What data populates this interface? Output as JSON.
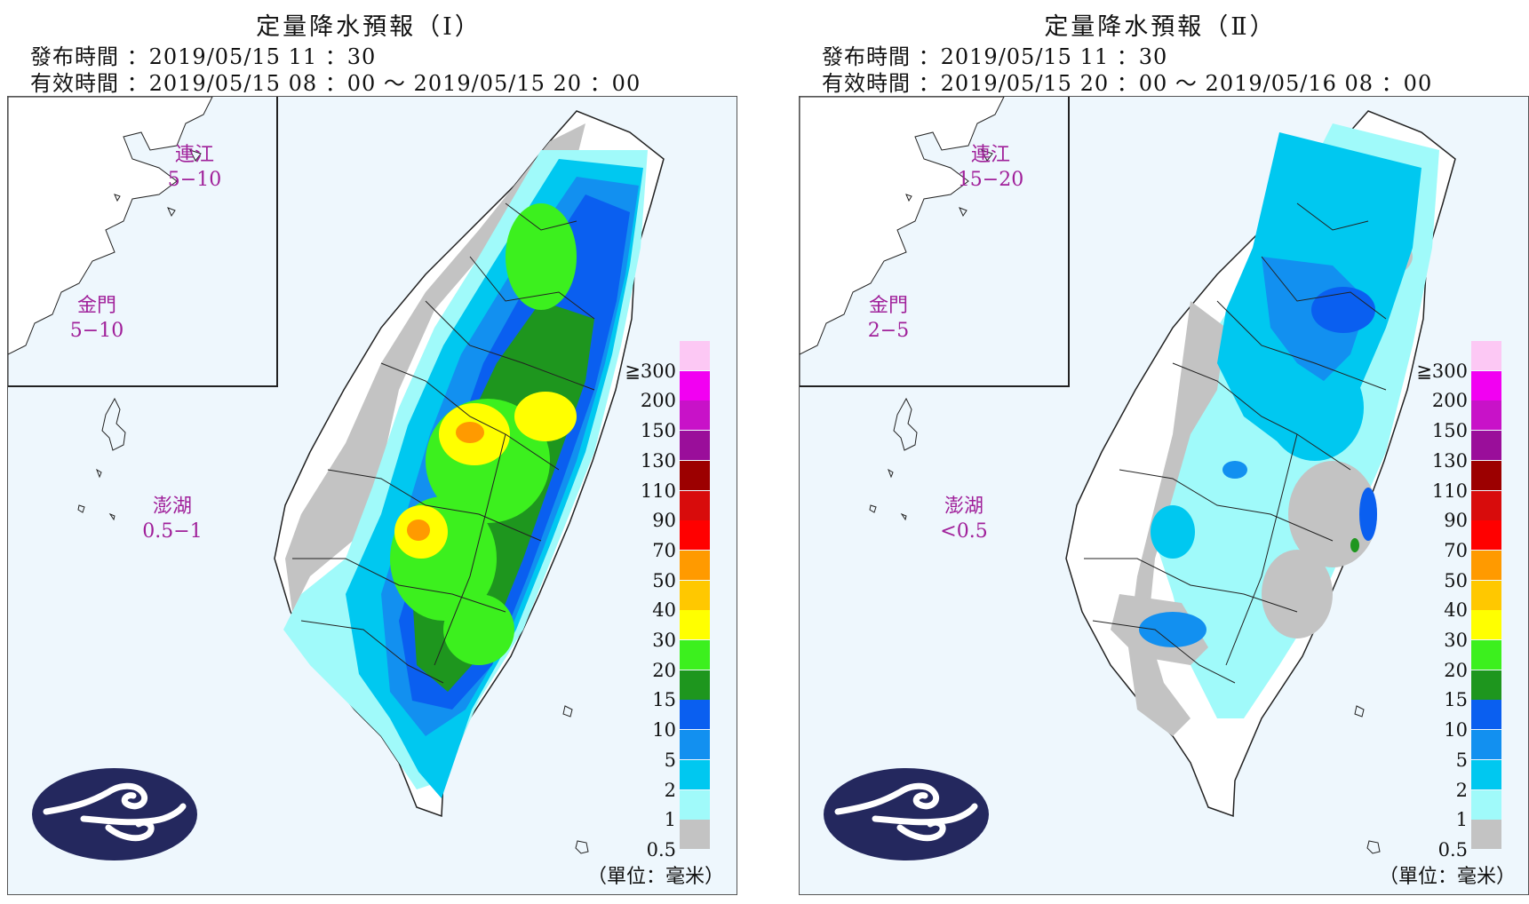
{
  "panels": [
    {
      "title": "定量降水預報（Ⅰ）",
      "issue_line": "發布時間 ：2019/05/15 11 ：30",
      "valid_line": "有效時間 ：2019/05/15 08 ：00 〜 2019/05/15 20 ：00",
      "islands": {
        "lienchiang": {
          "name": "連江",
          "value": "5−10"
        },
        "kinmen": {
          "name": "金門",
          "value": "5−10"
        },
        "penghu": {
          "name": "澎湖",
          "value": "0.5−1"
        }
      }
    },
    {
      "title": "定量降水預報（Ⅱ）",
      "issue_line": "發布時間 ：2019/05/15 11 ：30",
      "valid_line": "有效時間 ：2019/05/15 20 ：00 〜 2019/05/16 08 ：00",
      "islands": {
        "lienchiang": {
          "name": "連江",
          "value": "15−20"
        },
        "kinmen": {
          "name": "金門",
          "value": "2−5"
        },
        "penghu": {
          "name": "澎湖",
          "value": "<0.5"
        }
      }
    }
  ],
  "legend": {
    "labels": [
      "≧300",
      "200",
      "150",
      "130",
      "110",
      "90",
      "70",
      "50",
      "40",
      "30",
      "20",
      "15",
      "10",
      "5",
      "2",
      "1",
      "0.5"
    ],
    "colors": [
      "#fcc8f4",
      "#f200f2",
      "#c812c8",
      "#9a0e9a",
      "#9c0000",
      "#d80c0c",
      "#ff0000",
      "#ff9a00",
      "#ffc800",
      "#ffff00",
      "#3cf01e",
      "#1e961e",
      "#0a5ff0",
      "#1290f0",
      "#00c8f0",
      "#a0fafa",
      "#c3c3c3"
    ],
    "unit": "（單位：毫米）"
  },
  "colors": {
    "background": "#eef7fd",
    "island_label": "#a0209a",
    "logo": "#24285e"
  }
}
